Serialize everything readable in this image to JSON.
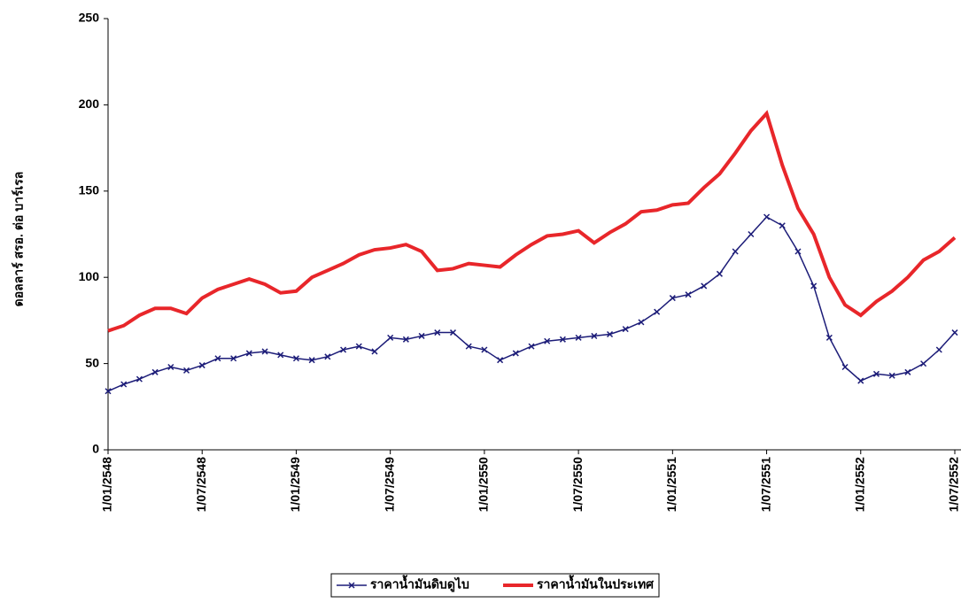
{
  "chart_data": {
    "type": "line",
    "y_label": "ดอลลาร์ สรอ. ต่อ บาร์เรล",
    "categories": [
      "1/01/2548",
      null,
      null,
      null,
      null,
      null,
      "1/07/2548",
      null,
      null,
      null,
      null,
      null,
      "1/01/2549",
      null,
      null,
      null,
      null,
      null,
      "1/07/2549",
      null,
      null,
      null,
      null,
      null,
      "1/01/2550",
      null,
      null,
      null,
      null,
      null,
      "1/07/2550",
      null,
      null,
      null,
      null,
      null,
      "1/01/2551",
      null,
      null,
      null,
      null,
      null,
      "1/07/2551",
      null,
      null,
      null,
      null,
      null,
      "1/01/2552",
      null,
      null,
      null,
      null,
      null,
      "1/07/2552"
    ],
    "series": [
      {
        "name": "ราคาน้ำมันดิบดูไบ",
        "color": "#1c1c78",
        "marker": "x",
        "values": [
          34,
          38,
          41,
          45,
          48,
          46,
          49,
          53,
          53,
          56,
          57,
          55,
          53,
          52,
          54,
          58,
          60,
          57,
          65,
          64,
          66,
          68,
          68,
          60,
          58,
          52,
          56,
          60,
          63,
          64,
          65,
          66,
          67,
          70,
          74,
          80,
          88,
          90,
          95,
          102,
          115,
          125,
          135,
          130,
          115,
          95,
          65,
          48,
          40,
          44,
          43,
          45,
          50,
          58,
          68
        ]
      },
      {
        "name": "ราคาน้ำมันในประเทศ",
        "color": "#e8262a",
        "marker": "none",
        "values": [
          69,
          72,
          78,
          82,
          82,
          79,
          88,
          93,
          96,
          99,
          96,
          91,
          92,
          100,
          104,
          108,
          113,
          116,
          117,
          119,
          115,
          104,
          105,
          108,
          107,
          106,
          113,
          119,
          124,
          125,
          127,
          120,
          126,
          131,
          138,
          139,
          142,
          143,
          152,
          160,
          172,
          185,
          195,
          165,
          140,
          125,
          100,
          84,
          78,
          86,
          92,
          100,
          110,
          115,
          123
        ]
      }
    ],
    "ylim": [
      0,
      250
    ],
    "yticks": [
      0,
      50,
      100,
      150,
      200,
      250
    ],
    "grid": false,
    "legend": "bottom"
  }
}
